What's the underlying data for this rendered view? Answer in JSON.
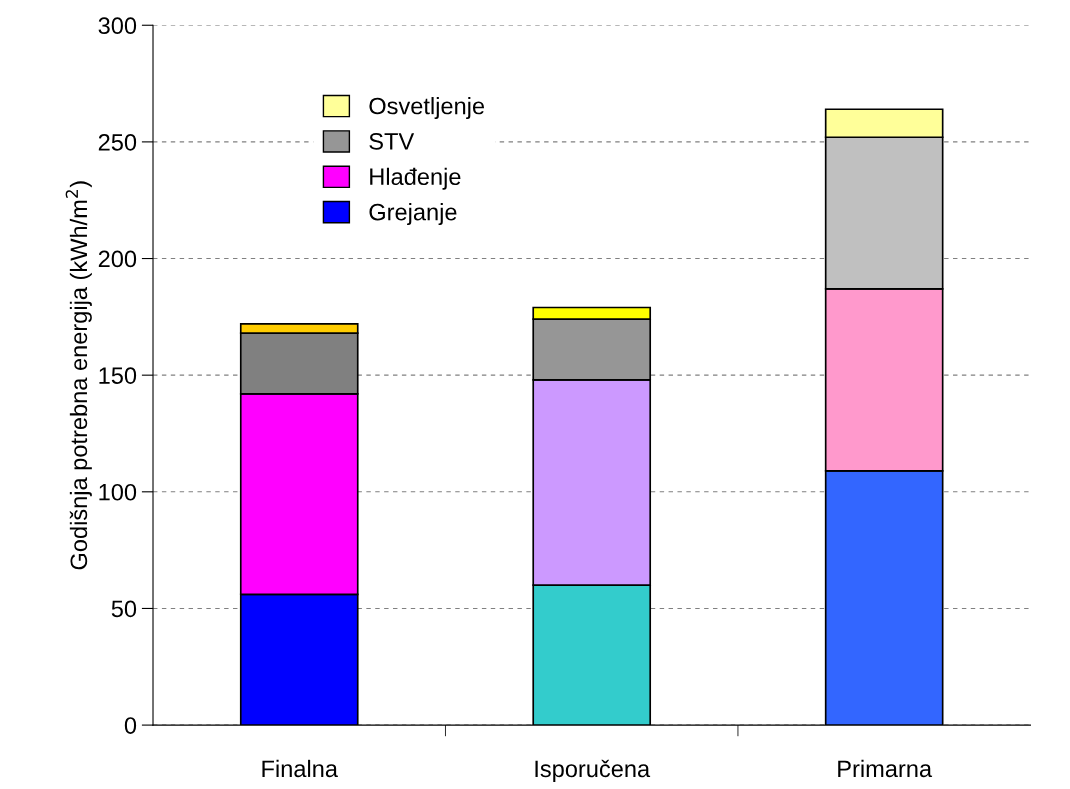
{
  "chart_data": {
    "type": "bar",
    "stacked": true,
    "ylabel": "Godišnja potrebna energija (kWh/m$^{2}$)",
    "categories": [
      "Finalna",
      "Isporučena",
      "Primarna"
    ],
    "series": [
      {
        "name": "Grejanje",
        "color": "#0000ff",
        "colors": [
          "#0000ff",
          "#33cccc",
          "#3366ff"
        ],
        "values": [
          56,
          60,
          109
        ]
      },
      {
        "name": "Hlađenje",
        "color": "#ff00ff",
        "colors": [
          "#ff00ff",
          "#cc99ff",
          "#ff99cc"
        ],
        "values": [
          86,
          88,
          78
        ]
      },
      {
        "name": "STV",
        "color": "#969696",
        "colors": [
          "#808080",
          "#969696",
          "#c0c0c0"
        ],
        "values": [
          26,
          26,
          65
        ]
      },
      {
        "name": "Osvetljenje",
        "color": "#ffff99",
        "colors": [
          "#ffcc00",
          "#ffff00",
          "#ffff99"
        ],
        "values": [
          4,
          5,
          12
        ]
      }
    ],
    "ylim": [
      0,
      300
    ],
    "yticks": [
      0,
      50,
      100,
      150,
      200,
      250,
      300
    ],
    "grid": "y",
    "legend": "top left"
  }
}
